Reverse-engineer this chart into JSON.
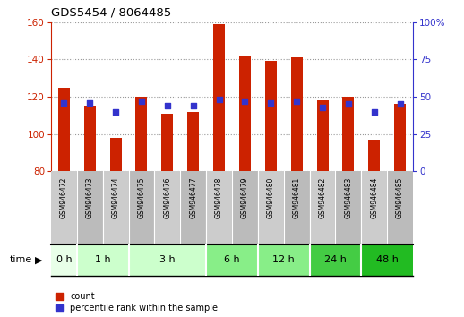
{
  "title": "GDS5454 / 8064485",
  "samples": [
    "GSM946472",
    "GSM946473",
    "GSM946474",
    "GSM946475",
    "GSM946476",
    "GSM946477",
    "GSM946478",
    "GSM946479",
    "GSM946480",
    "GSM946481",
    "GSM946482",
    "GSM946483",
    "GSM946484",
    "GSM946485"
  ],
  "counts": [
    125,
    115,
    98,
    120,
    111,
    112,
    159,
    142,
    139,
    141,
    118,
    120,
    97,
    116
  ],
  "percentiles": [
    46,
    46,
    40,
    47,
    44,
    44,
    48,
    47,
    46,
    47,
    43,
    45,
    40,
    45
  ],
  "ylim_left": [
    80,
    160
  ],
  "ylim_right": [
    0,
    100
  ],
  "yticks_left": [
    80,
    100,
    120,
    140,
    160
  ],
  "yticks_right": [
    0,
    25,
    50,
    75,
    100
  ],
  "bar_color": "#cc2200",
  "dot_color": "#3333cc",
  "time_groups": [
    {
      "label": "0 h",
      "start": 0,
      "end": 0,
      "color": "#e8ffe8"
    },
    {
      "label": "1 h",
      "start": 1,
      "end": 2,
      "color": "#ccffcc"
    },
    {
      "label": "3 h",
      "start": 3,
      "end": 5,
      "color": "#ccffcc"
    },
    {
      "label": "6 h",
      "start": 6,
      "end": 7,
      "color": "#88ee88"
    },
    {
      "label": "12 h",
      "start": 8,
      "end": 9,
      "color": "#88ee88"
    },
    {
      "label": "24 h",
      "start": 10,
      "end": 11,
      "color": "#44cc44"
    },
    {
      "label": "48 h",
      "start": 12,
      "end": 13,
      "color": "#22bb22"
    }
  ],
  "grid_color": "#999999",
  "label_count": "count",
  "label_percentile": "percentile rank within the sample",
  "xlabel": "time",
  "sample_bg": [
    "#cccccc",
    "#bbbbbb"
  ],
  "right_axis_color": "#3333cc",
  "left_axis_color": "#cc2200"
}
